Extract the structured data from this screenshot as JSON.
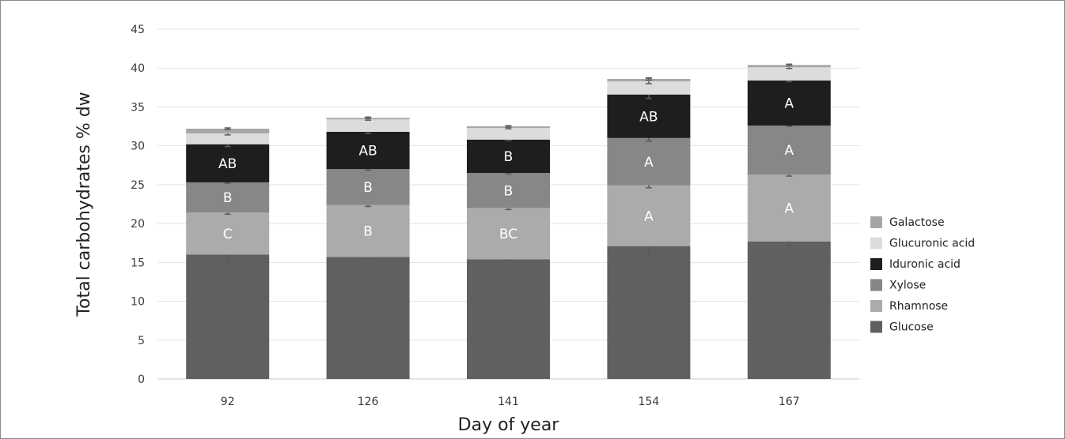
{
  "chart_data": {
    "type": "bar",
    "stacked": true,
    "title": "",
    "xlabel": "Day of year",
    "ylabel": "Total carbohydrates % dw",
    "ylim": [
      0,
      45
    ],
    "yticks": [
      0,
      5,
      10,
      15,
      20,
      25,
      30,
      35,
      40,
      45
    ],
    "grid": true,
    "legend_position": "right",
    "categories": [
      "92",
      "126",
      "141",
      "154",
      "167"
    ],
    "series": [
      {
        "name": "Glucose",
        "color": "#606060",
        "values": [
          16.0,
          15.7,
          15.4,
          17.1,
          17.7
        ],
        "errors": [
          0.7,
          0.3,
          0.2,
          1.0,
          0.5
        ],
        "labels": [
          "",
          "",
          "",
          "",
          ""
        ]
      },
      {
        "name": "Rhamnose",
        "color": "#ababab",
        "values": [
          5.4,
          6.7,
          6.6,
          7.8,
          8.6
        ],
        "errors": [
          0.2,
          0.2,
          0.2,
          0.3,
          0.2
        ],
        "labels": [
          "C",
          "B",
          "BC",
          "A",
          "A"
        ]
      },
      {
        "name": "Xylose",
        "color": "#878787",
        "values": [
          3.9,
          4.6,
          4.5,
          6.1,
          6.3
        ],
        "errors": [
          0.1,
          0.15,
          0.1,
          0.4,
          0.1
        ],
        "labels": [
          "B",
          "B",
          "B",
          "A",
          "A"
        ]
      },
      {
        "name": "Iduronic acid",
        "color": "#1e1e1e",
        "values": [
          4.9,
          4.8,
          4.3,
          5.6,
          5.8
        ],
        "errors": [
          0.3,
          0.2,
          0.1,
          0.5,
          0.15
        ],
        "labels": [
          "AB",
          "AB",
          "B",
          "AB",
          "A"
        ]
      },
      {
        "name": "Glucuronic acid",
        "color": "#dcdcdc",
        "values": [
          1.4,
          1.6,
          1.5,
          1.7,
          1.7
        ],
        "errors": [
          0.2,
          0.1,
          0.1,
          0.3,
          0.15
        ],
        "labels": [
          "",
          "",
          "",
          "",
          ""
        ]
      },
      {
        "name": "Galactose",
        "color": "#a6a6a6",
        "values": [
          0.6,
          0.2,
          0.2,
          0.3,
          0.3
        ],
        "errors": [
          0.1,
          0.1,
          0.1,
          0.15,
          0.1
        ],
        "labels": [
          "",
          "",
          "",
          "",
          ""
        ]
      }
    ],
    "legend_order": [
      "Galactose",
      "Glucuronic acid",
      "Iduronic acid",
      "Xylose",
      "Rhamnose",
      "Glucose"
    ]
  }
}
